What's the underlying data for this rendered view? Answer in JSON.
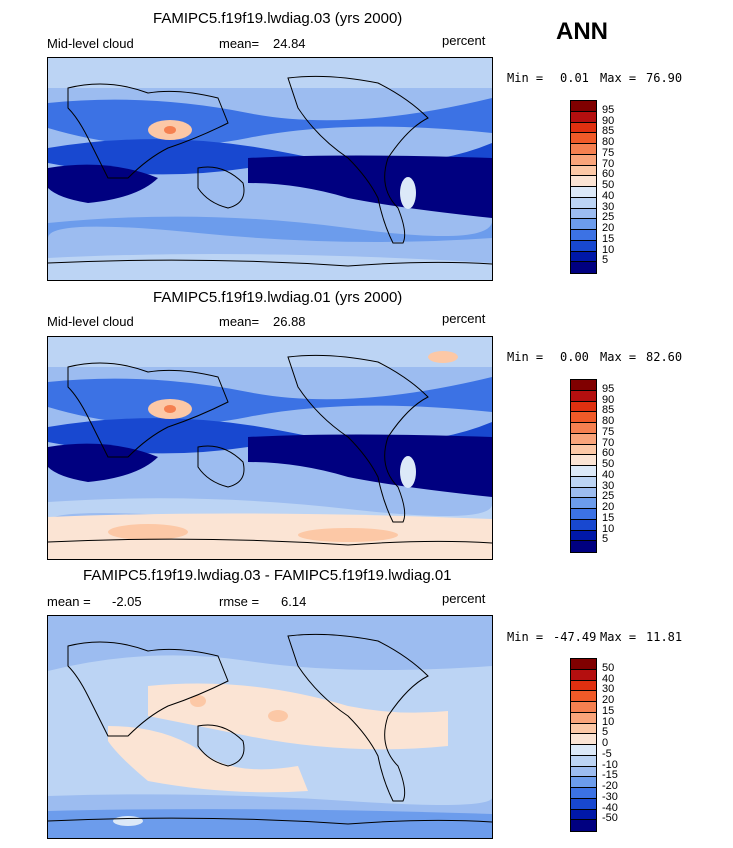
{
  "season_label": "ANN",
  "panels": [
    {
      "title": "FAMIPC5.f19f19.lwdiag.03 (yrs 2000)",
      "left_label": "Mid-level cloud",
      "mean_label": "mean=",
      "mean_value": "24.84",
      "units": "percent",
      "min_label": "Min =",
      "min_value": "0.01",
      "max_label": "Max =",
      "max_value": "76.90",
      "colorbar_labels": [
        "95",
        "90",
        "85",
        "80",
        "75",
        "70",
        "60",
        "50",
        "40",
        "30",
        "25",
        "20",
        "15",
        "10",
        "5"
      ]
    },
    {
      "title": "FAMIPC5.f19f19.lwdiag.01 (yrs 2000)",
      "left_label": "Mid-level cloud",
      "mean_label": "mean=",
      "mean_value": "26.88",
      "units": "percent",
      "min_label": "Min =",
      "min_value": "0.00",
      "max_label": "Max =",
      "max_value": "82.60",
      "colorbar_labels": [
        "95",
        "90",
        "85",
        "80",
        "75",
        "70",
        "60",
        "50",
        "40",
        "30",
        "25",
        "20",
        "15",
        "10",
        "5"
      ]
    },
    {
      "title": "FAMIPC5.f19f19.lwdiag.03 - FAMIPC5.f19f19.lwdiag.01",
      "left_label": "mean =",
      "mean_label": "",
      "mean_value": "-2.05",
      "rmse_label": "rmse =",
      "rmse_value": "6.14",
      "units": "percent",
      "min_label": "Min =",
      "min_value": "-47.49",
      "max_label": "Max =",
      "max_value": "11.81",
      "colorbar_labels": [
        "50",
        "40",
        "30",
        "20",
        "15",
        "10",
        "5",
        "0",
        "-5",
        "-10",
        "-15",
        "-20",
        "-30",
        "-40",
        "-50"
      ]
    }
  ],
  "colors": {
    "abs_scale": [
      "#800000",
      "#b40f0f",
      "#e03010",
      "#f05a28",
      "#f58050",
      "#f9a47a",
      "#fcc8a6",
      "#fbe4d4",
      "#dce9f8",
      "#bcd4f4",
      "#9cbcf0",
      "#6c9cec",
      "#3c72e4",
      "#1848d0",
      "#0018a8",
      "#000080"
    ],
    "diff_scale": [
      "#800000",
      "#b40f0f",
      "#e03010",
      "#f05a28",
      "#f58050",
      "#f9a47a",
      "#fcc8a6",
      "#fbe4d4",
      "#dce9f8",
      "#bcd4f4",
      "#9cbcf0",
      "#6c9cec",
      "#3c72e4",
      "#1848d0",
      "#0018a8",
      "#000080"
    ]
  }
}
